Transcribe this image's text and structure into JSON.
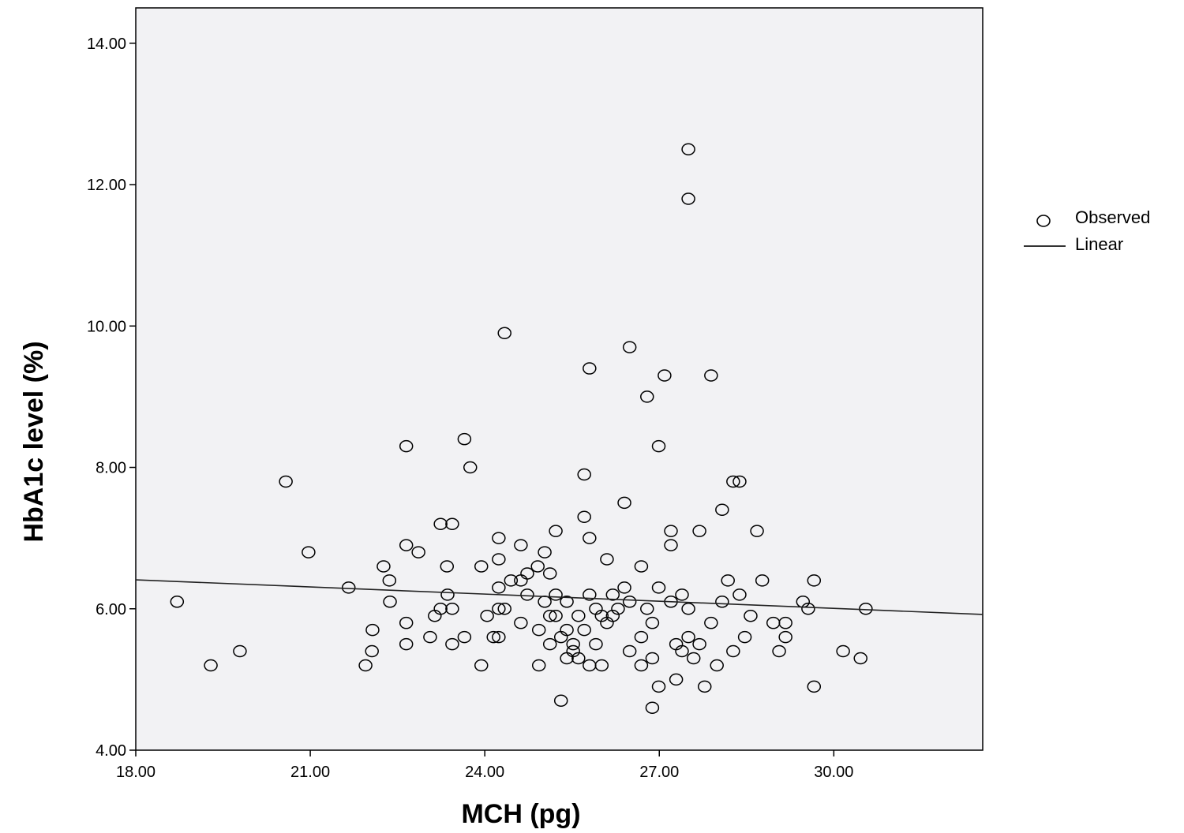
{
  "chart_data": {
    "type": "scatter",
    "title": "",
    "xlabel": "MCH (pg)",
    "ylabel": "HbA1c level (%)",
    "xlim": [
      18,
      32.56
    ],
    "ylim": [
      4,
      14.5
    ],
    "xticks": [
      18,
      21,
      24,
      27,
      30
    ],
    "xtick_labels": [
      "18.00",
      "21.00",
      "24.00",
      "27.00",
      "30.00"
    ],
    "yticks": [
      4,
      6,
      8,
      10,
      12,
      14
    ],
    "ytick_labels": [
      "4.00",
      "6.00",
      "8.00",
      "10.00",
      "12.00",
      "14.00"
    ],
    "grid": false,
    "legend": {
      "placement": "right",
      "entries": [
        "Observed",
        "Linear"
      ]
    },
    "series": [
      {
        "name": "Observed",
        "marker": "open-circle",
        "points": [
          [
            18.71,
            6.1
          ],
          [
            19.29,
            5.2
          ],
          [
            19.79,
            5.4
          ],
          [
            20.58,
            7.8
          ],
          [
            20.97,
            6.8
          ],
          [
            21.66,
            6.3
          ],
          [
            21.95,
            5.2
          ],
          [
            22.06,
            5.4
          ],
          [
            22.07,
            5.7
          ],
          [
            22.26,
            6.6
          ],
          [
            22.36,
            6.4
          ],
          [
            22.37,
            6.1
          ],
          [
            22.65,
            8.3
          ],
          [
            22.65,
            6.9
          ],
          [
            22.65,
            5.8
          ],
          [
            22.65,
            5.5
          ],
          [
            22.86,
            6.8
          ],
          [
            23.06,
            5.6
          ],
          [
            23.14,
            5.9
          ],
          [
            23.24,
            7.2
          ],
          [
            23.24,
            6.0
          ],
          [
            23.35,
            6.6
          ],
          [
            23.36,
            6.2
          ],
          [
            23.44,
            7.2
          ],
          [
            23.44,
            6.0
          ],
          [
            23.44,
            5.5
          ],
          [
            23.65,
            8.4
          ],
          [
            23.65,
            5.6
          ],
          [
            23.75,
            8.0
          ],
          [
            23.94,
            6.6
          ],
          [
            23.94,
            5.2
          ],
          [
            24.04,
            5.9
          ],
          [
            24.15,
            5.6
          ],
          [
            24.24,
            7.0
          ],
          [
            24.24,
            6.7
          ],
          [
            24.24,
            6.3
          ],
          [
            24.24,
            6.0
          ],
          [
            24.24,
            5.6
          ],
          [
            24.34,
            9.9
          ],
          [
            24.34,
            6.0
          ],
          [
            24.45,
            6.4
          ],
          [
            24.62,
            6.9
          ],
          [
            24.62,
            6.4
          ],
          [
            24.62,
            5.8
          ],
          [
            24.73,
            6.5
          ],
          [
            24.73,
            6.2
          ],
          [
            24.91,
            6.6
          ],
          [
            24.93,
            5.2
          ],
          [
            24.93,
            5.7
          ],
          [
            25.03,
            6.8
          ],
          [
            25.03,
            6.1
          ],
          [
            25.12,
            6.5
          ],
          [
            25.12,
            5.5
          ],
          [
            25.12,
            5.9
          ],
          [
            25.22,
            7.1
          ],
          [
            25.22,
            6.2
          ],
          [
            25.22,
            5.9
          ],
          [
            25.31,
            4.7
          ],
          [
            25.31,
            5.6
          ],
          [
            25.41,
            6.1
          ],
          [
            25.41,
            5.3
          ],
          [
            25.41,
            5.7
          ],
          [
            25.52,
            5.5
          ],
          [
            25.52,
            5.4
          ],
          [
            25.61,
            5.9
          ],
          [
            25.61,
            5.3
          ],
          [
            25.71,
            7.9
          ],
          [
            25.71,
            7.3
          ],
          [
            25.71,
            5.7
          ],
          [
            25.8,
            9.4
          ],
          [
            25.8,
            7.0
          ],
          [
            25.8,
            6.2
          ],
          [
            25.8,
            5.2
          ],
          [
            25.91,
            6.0
          ],
          [
            25.91,
            5.5
          ],
          [
            26.01,
            5.9
          ],
          [
            26.01,
            5.2
          ],
          [
            26.1,
            6.7
          ],
          [
            26.1,
            5.8
          ],
          [
            26.2,
            6.2
          ],
          [
            26.2,
            5.9
          ],
          [
            26.29,
            6.0
          ],
          [
            26.4,
            7.5
          ],
          [
            26.4,
            6.3
          ],
          [
            26.49,
            9.7
          ],
          [
            26.49,
            5.4
          ],
          [
            26.49,
            6.1
          ],
          [
            26.69,
            6.6
          ],
          [
            26.69,
            5.2
          ],
          [
            26.69,
            5.6
          ],
          [
            26.79,
            9.0
          ],
          [
            26.79,
            6.0
          ],
          [
            26.88,
            5.8
          ],
          [
            26.88,
            5.3
          ],
          [
            26.88,
            4.6
          ],
          [
            26.99,
            8.3
          ],
          [
            26.99,
            6.3
          ],
          [
            26.99,
            4.9
          ],
          [
            27.09,
            9.3
          ],
          [
            27.2,
            7.1
          ],
          [
            27.2,
            6.9
          ],
          [
            27.2,
            6.1
          ],
          [
            27.29,
            5.5
          ],
          [
            27.29,
            5.0
          ],
          [
            27.39,
            6.2
          ],
          [
            27.39,
            5.4
          ],
          [
            27.5,
            12.5
          ],
          [
            27.5,
            11.8
          ],
          [
            27.5,
            6.0
          ],
          [
            27.5,
            5.6
          ],
          [
            27.59,
            5.3
          ],
          [
            27.69,
            7.1
          ],
          [
            27.69,
            5.5
          ],
          [
            27.78,
            4.9
          ],
          [
            27.89,
            9.3
          ],
          [
            27.89,
            5.8
          ],
          [
            27.99,
            5.2
          ],
          [
            28.08,
            7.4
          ],
          [
            28.08,
            6.1
          ],
          [
            28.18,
            6.4
          ],
          [
            28.27,
            5.4
          ],
          [
            28.27,
            7.8
          ],
          [
            28.38,
            7.8
          ],
          [
            28.38,
            6.2
          ],
          [
            28.47,
            5.6
          ],
          [
            28.57,
            5.9
          ],
          [
            28.68,
            7.1
          ],
          [
            28.77,
            6.4
          ],
          [
            28.96,
            5.8
          ],
          [
            29.06,
            5.4
          ],
          [
            29.17,
            5.6
          ],
          [
            29.17,
            5.8
          ],
          [
            29.47,
            6.1
          ],
          [
            29.56,
            6.0
          ],
          [
            29.66,
            6.4
          ],
          [
            29.66,
            4.9
          ],
          [
            30.16,
            5.4
          ],
          [
            30.46,
            5.3
          ],
          [
            30.55,
            6.0
          ]
        ]
      },
      {
        "name": "Linear",
        "type": "line",
        "points": [
          [
            18,
            6.41
          ],
          [
            32.56,
            5.92
          ]
        ]
      }
    ]
  }
}
